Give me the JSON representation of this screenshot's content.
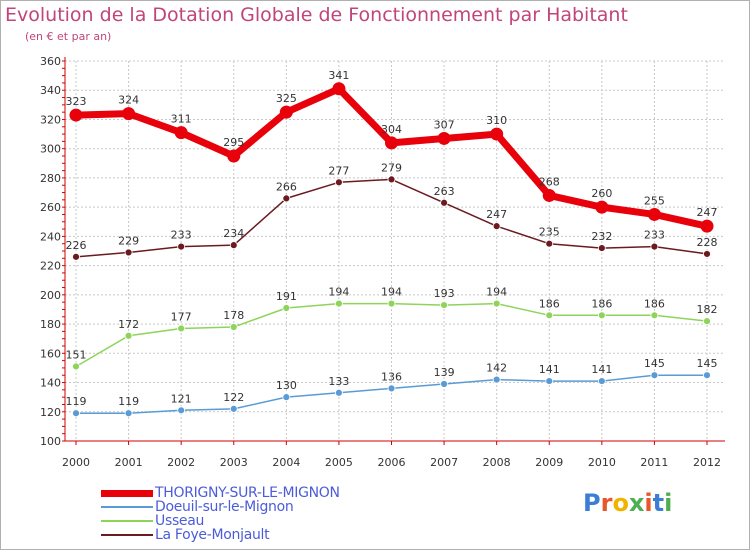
{
  "header": {
    "title": "Evolution de la Dotation Globale de Fonctionnement par Habitant",
    "subtitle": "(en € et par an)"
  },
  "logo": {
    "text": "Proxiti",
    "colors": [
      "#3a7fd5",
      "#e7572b",
      "#f0b400",
      "#4caf50",
      "#e7572b",
      "#3a7fd5",
      "#4caf50"
    ]
  },
  "chart_data": {
    "type": "line",
    "title": "Evolution de la Dotation Globale de Fonctionnement par Habitant",
    "subtitle": "(en € et par an)",
    "xlabel": "",
    "ylabel": "",
    "ylim": [
      100,
      360
    ],
    "yticks": [
      100,
      120,
      140,
      160,
      180,
      200,
      220,
      240,
      260,
      280,
      300,
      320,
      340,
      360
    ],
    "grid": true,
    "legend_position": "bottom-left",
    "x": [
      "2000",
      "2001",
      "2002",
      "2003",
      "2004",
      "2005",
      "2006",
      "2007",
      "2008",
      "2009",
      "2010",
      "2011",
      "2012"
    ],
    "series": [
      {
        "name": "THORIGNY-SUR-LE-MIGNON",
        "color": "#e8000b",
        "emphasis": true,
        "values": [
          323,
          324,
          311,
          295,
          325,
          341,
          304,
          307,
          310,
          268,
          260,
          255,
          247
        ]
      },
      {
        "name": "Doeuil-sur-le-Mignon",
        "color": "#5a9bd5",
        "emphasis": false,
        "values": [
          119,
          119,
          121,
          122,
          130,
          133,
          136,
          139,
          142,
          141,
          141,
          145,
          145
        ]
      },
      {
        "name": "Usseau",
        "color": "#8ed45a",
        "emphasis": false,
        "values": [
          151,
          172,
          177,
          178,
          191,
          194,
          194,
          193,
          194,
          186,
          186,
          186,
          182
        ]
      },
      {
        "name": "La Foye-Monjault",
        "color": "#6b1a1f",
        "emphasis": false,
        "values": [
          226,
          229,
          233,
          234,
          266,
          277,
          279,
          263,
          247,
          235,
          232,
          233,
          228
        ]
      }
    ]
  }
}
